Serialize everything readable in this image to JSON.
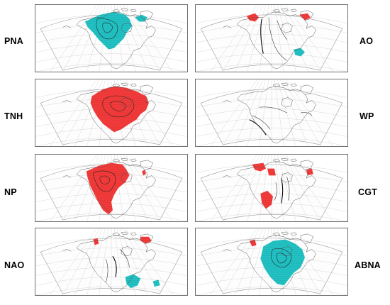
{
  "colors": {
    "positive": "#f23a3a",
    "negative": "#22c1c3",
    "land_outline": "#555555",
    "graticule": "#c8c8c8",
    "panel_border": "#6e6e6e"
  },
  "panels": [
    {
      "label": "PNA",
      "shading": "negative"
    },
    {
      "label": "TNH",
      "shading": "positive"
    },
    {
      "label": "NP",
      "shading": "positive"
    },
    {
      "label": "NAO",
      "shading": "mixed"
    },
    {
      "label": "AO",
      "shading": "mixed"
    },
    {
      "label": "WP",
      "shading": "none"
    },
    {
      "label": "CGT",
      "shading": "positive"
    },
    {
      "label": "ABNA",
      "shading": "mixed"
    }
  ]
}
